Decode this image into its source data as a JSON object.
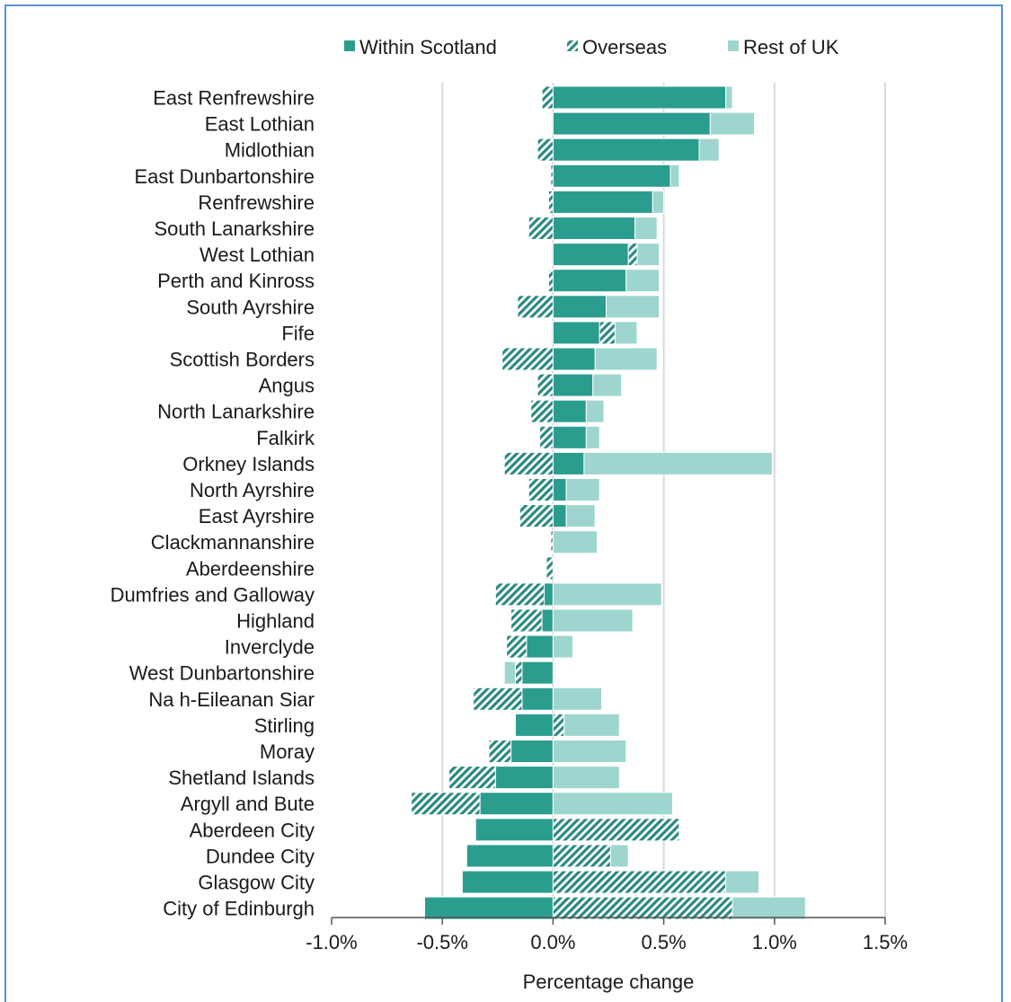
{
  "chart_data": {
    "type": "bar",
    "orientation": "horizontal",
    "stacked": "diverging",
    "xlabel": "Percentage change",
    "xlim": [
      -1.0,
      1.5
    ],
    "xticks": [
      "-1.0%",
      "-0.5%",
      "0.0%",
      "0.5%",
      "1.0%",
      "1.5%"
    ],
    "grid": "vertical",
    "legend_position": "top",
    "colors": {
      "within": "#2a9d8f",
      "overseas": "#2a8a80",
      "rest": "#9ed6cf",
      "grid": "#d9d9d9",
      "axis": "#555555",
      "frame": "#5b8fd8"
    },
    "series": [
      {
        "name": "Within Scotland",
        "pattern": "solid"
      },
      {
        "name": "Overseas",
        "pattern": "hatched"
      },
      {
        "name": "Rest of UK",
        "pattern": "solid-light"
      }
    ],
    "categories": [
      "East Renfrewshire",
      "East Lothian",
      "Midlothian",
      "East Dunbartonshire",
      "Renfrewshire",
      "South Lanarkshire",
      "West Lothian",
      "Perth and Kinross",
      "South Ayrshire",
      "Fife",
      "Scottish Borders",
      "Angus",
      "North Lanarkshire",
      "Falkirk",
      "Orkney Islands",
      "North Ayrshire",
      "East Ayrshire",
      "Clackmannanshire",
      "Aberdeenshire",
      "Dumfries and Galloway",
      "Highland",
      "Inverclyde",
      "West Dunbartonshire",
      "Na h-Eileanan Siar",
      "Stirling",
      "Moray",
      "Shetland Islands",
      "Argyll and Bute",
      "Aberdeen City",
      "Dundee City",
      "Glasgow City",
      "City of Edinburgh"
    ],
    "values": {
      "within": [
        0.78,
        0.71,
        0.66,
        0.53,
        0.45,
        0.37,
        0.34,
        0.33,
        0.24,
        0.21,
        0.19,
        0.18,
        0.15,
        0.15,
        0.14,
        0.06,
        0.06,
        0.0,
        0.0,
        -0.04,
        -0.05,
        -0.12,
        -0.14,
        -0.14,
        -0.17,
        -0.19,
        -0.26,
        -0.33,
        -0.35,
        -0.39,
        -0.41,
        -0.58
      ],
      "overseas": [
        -0.05,
        0.0,
        -0.07,
        -0.01,
        -0.02,
        -0.11,
        0.04,
        -0.02,
        -0.16,
        0.07,
        -0.23,
        -0.07,
        -0.1,
        -0.06,
        -0.22,
        -0.11,
        -0.15,
        -0.01,
        -0.03,
        -0.22,
        -0.14,
        -0.09,
        -0.03,
        -0.22,
        0.05,
        -0.1,
        -0.21,
        -0.31,
        0.57,
        0.26,
        0.78,
        0.81
      ],
      "rest": [
        0.03,
        0.2,
        0.09,
        0.04,
        0.05,
        0.1,
        0.1,
        0.15,
        0.24,
        0.1,
        0.28,
        0.13,
        0.08,
        0.06,
        0.85,
        0.15,
        0.13,
        0.2,
        0.0,
        0.49,
        0.36,
        0.09,
        -0.05,
        0.22,
        0.25,
        0.33,
        0.3,
        0.54,
        0.0,
        0.08,
        0.15,
        0.33
      ]
    }
  }
}
